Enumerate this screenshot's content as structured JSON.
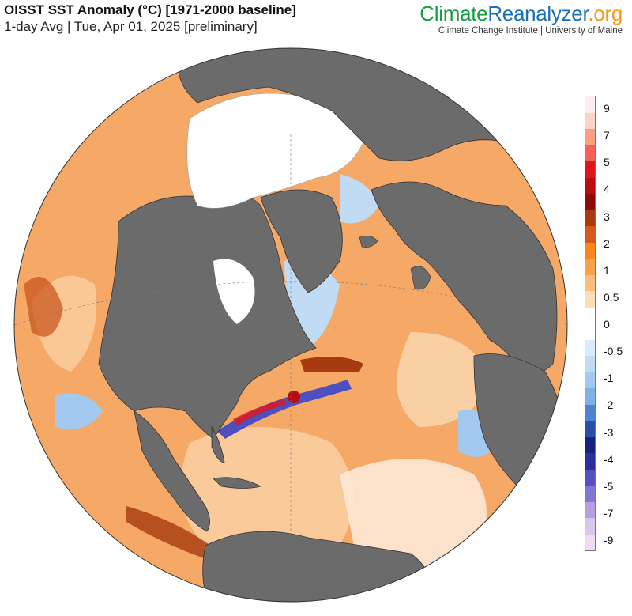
{
  "header": {
    "title": "OISST SST Anomaly (°C) [1971-2000 baseline]",
    "subtitle": "1-day Avg | Tue, Apr 01, 2025 [preliminary]"
  },
  "brand": {
    "part1": "Climate",
    "part2": "Reanalyzer",
    "part3": ".org",
    "tagline": "Climate Change Institute | University of Maine"
  },
  "colors": {
    "land": "#6b6b6b",
    "sea_ice": "#ffffff",
    "warm": "#f08a3a",
    "cool": "#9fc8f0"
  },
  "legend": {
    "colors": [
      "#fdeef0",
      "#fdd4c7",
      "#f8a07f",
      "#f5605a",
      "#e3141c",
      "#b90d10",
      "#8e0a08",
      "#a83a10",
      "#d65a1a",
      "#f6881c",
      "#f9a04a",
      "#fbbd7d",
      "#fdddb6",
      "#ffffff",
      "#ffffff",
      "#dcebfb",
      "#c2dbf5",
      "#a4c9f0",
      "#7fb0e8",
      "#4d85d2",
      "#2a4fa6",
      "#15237d",
      "#2d2e9c",
      "#5650c0",
      "#8476d4",
      "#b7a0e2",
      "#d8c6ee",
      "#eedcf6"
    ],
    "ticks": [
      "9",
      "7",
      "5",
      "4",
      "3",
      "2",
      "1",
      "0.5",
      "0",
      "-0.5",
      "-1",
      "-2",
      "-3",
      "-4",
      "-5",
      "-7",
      "-9"
    ]
  }
}
